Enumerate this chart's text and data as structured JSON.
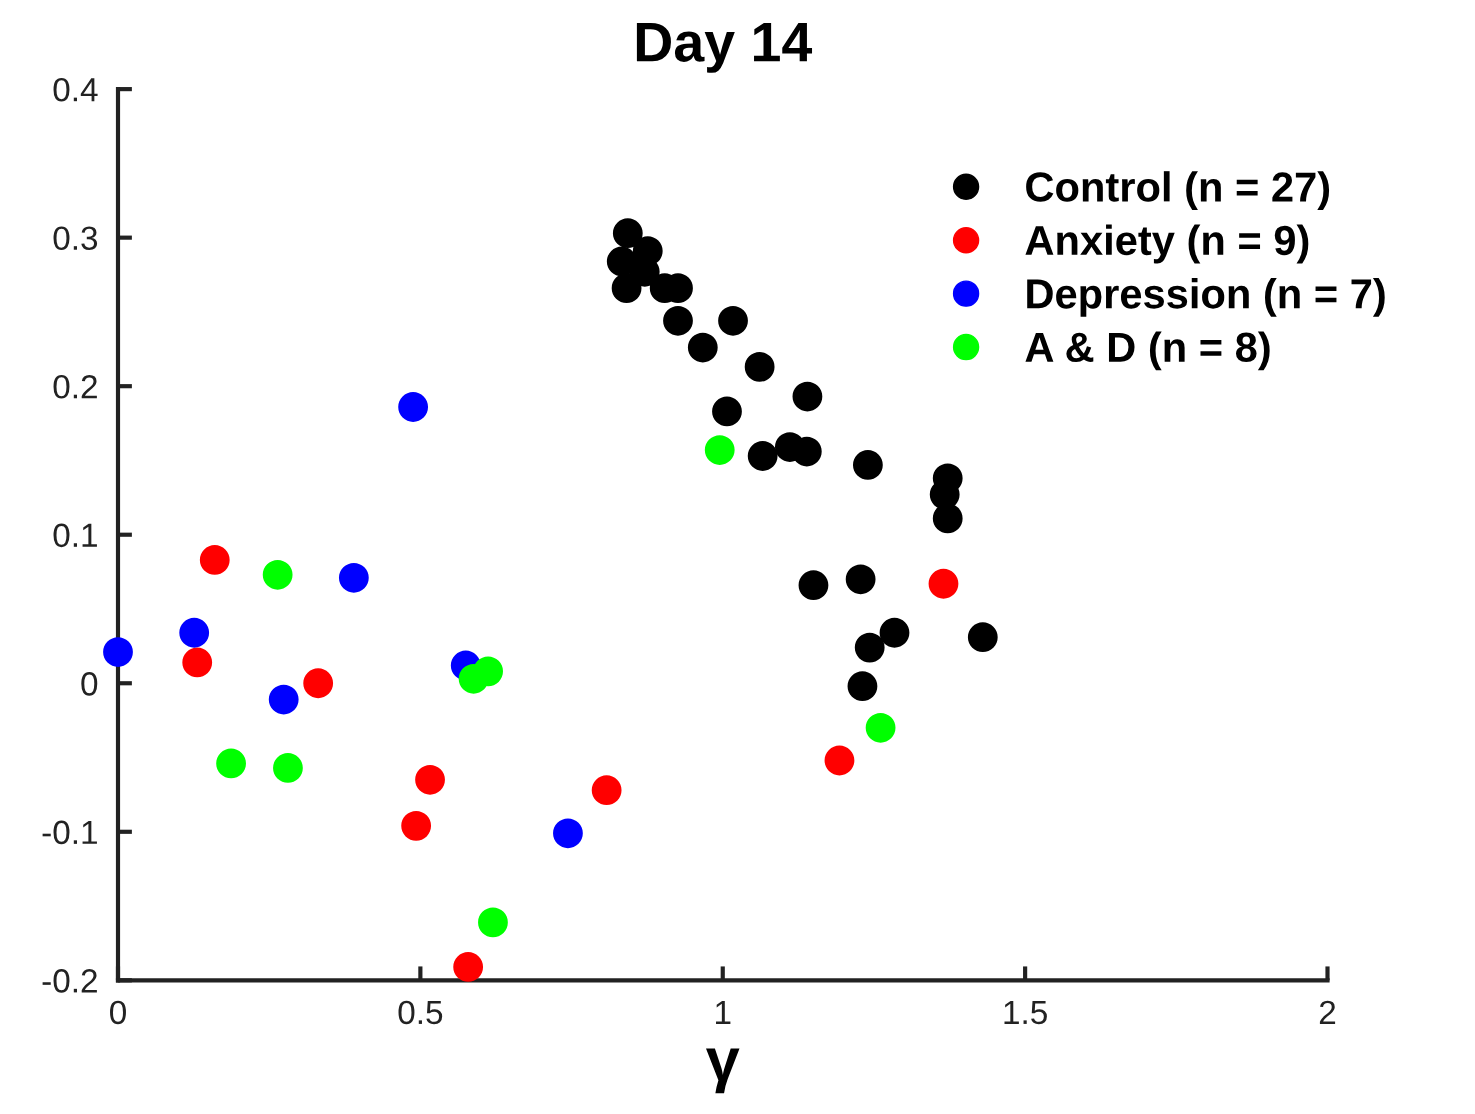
{
  "chart_data": {
    "type": "scatter",
    "title": "Day 14",
    "xlabel": "γ",
    "xlim": [
      0,
      2
    ],
    "ylim": [
      -0.2,
      0.4
    ],
    "xticks": [
      0,
      0.5,
      1,
      1.5,
      2
    ],
    "yticks": [
      -0.2,
      -0.1,
      0,
      0.1,
      0.2,
      0.3,
      0.4
    ],
    "grid": false,
    "legend": "top right",
    "marker": "circle",
    "series": [
      {
        "name": "Control (n = 27)",
        "color": "#000000",
        "x": [
          0.843,
          0.876,
          0.833,
          0.871,
          0.841,
          0.904,
          0.926,
          0.926,
          1.017,
          0.967,
          1.061,
          1.14,
          1.007,
          1.066,
          1.111,
          1.139,
          1.24,
          1.372,
          1.367,
          1.372,
          1.15,
          1.228,
          1.284,
          1.243,
          1.43,
          1.231
        ],
        "values": [
          0.303,
          0.291,
          0.284,
          0.277,
          0.266,
          0.266,
          0.266,
          0.244,
          0.244,
          0.226,
          0.213,
          0.193,
          0.183,
          0.153,
          0.159,
          0.156,
          0.147,
          0.138,
          0.127,
          0.111,
          0.066,
          0.07,
          0.034,
          0.024,
          0.031,
          -0.002
        ]
      },
      {
        "name": "Anxiety (n = 9)",
        "color": "#ff0000",
        "x": [
          0.16,
          0.131,
          0.331,
          0.516,
          0.493,
          0.579,
          0.808,
          1.193,
          1.365
        ],
        "values": [
          0.083,
          0.014,
          0.0,
          -0.065,
          -0.096,
          -0.191,
          -0.072,
          -0.052,
          0.067
        ]
      },
      {
        "name": "Depression (n = 7)",
        "color": "#0000ff",
        "x": [
          0.0,
          0.126,
          0.274,
          0.39,
          0.488,
          0.575,
          0.744
        ],
        "values": [
          0.021,
          0.034,
          -0.011,
          0.071,
          0.186,
          0.012,
          -0.101
        ]
      },
      {
        "name": "A & D (n = 8)",
        "color": "#00ff00",
        "x": [
          0.264,
          0.187,
          0.281,
          0.588,
          0.612,
          0.62,
          0.995,
          1.261
        ],
        "values": [
          0.073,
          -0.054,
          -0.057,
          0.003,
          0.008,
          -0.161,
          0.157,
          -0.03
        ]
      }
    ]
  }
}
